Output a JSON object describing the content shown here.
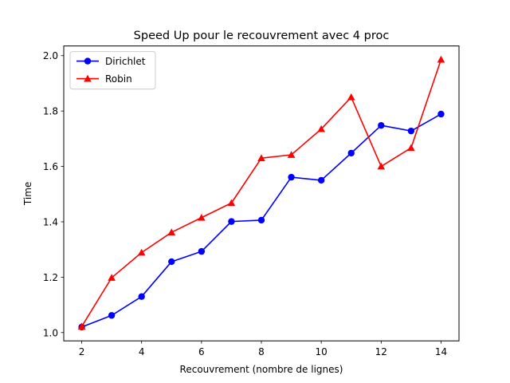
{
  "chart_data": {
    "type": "line",
    "title": "Speed Up pour le recouvrement avec 4 proc",
    "xlabel": "Recouvrement (nombre de lignes)",
    "ylabel": "Time",
    "xlim": [
      1.4,
      14.6
    ],
    "ylim": [
      0.97,
      2.035
    ],
    "xticks": [
      2,
      4,
      6,
      8,
      10,
      12,
      14
    ],
    "yticks": [
      1.0,
      1.2,
      1.4,
      1.6,
      1.8,
      2.0
    ],
    "ytick_labels": [
      "1.0",
      "1.2",
      "1.4",
      "1.6",
      "1.8",
      "2.0"
    ],
    "grid": false,
    "legend": "top-left",
    "x": [
      2,
      3,
      4,
      5,
      6,
      7,
      8,
      9,
      10,
      11,
      12,
      13,
      14
    ],
    "series": [
      {
        "name": "Dirichlet",
        "color": "#0000ff",
        "marker": "circle",
        "values": [
          1.02,
          1.062,
          1.13,
          1.256,
          1.293,
          1.401,
          1.406,
          1.561,
          1.55,
          1.648,
          1.748,
          1.728,
          1.789
        ]
      },
      {
        "name": "Robin",
        "color": "#ff0000",
        "marker": "triangle",
        "values": [
          1.022,
          1.198,
          1.289,
          1.362,
          1.415,
          1.468,
          1.63,
          1.642,
          1.735,
          1.85,
          1.6,
          1.667,
          1.986
        ]
      }
    ]
  }
}
